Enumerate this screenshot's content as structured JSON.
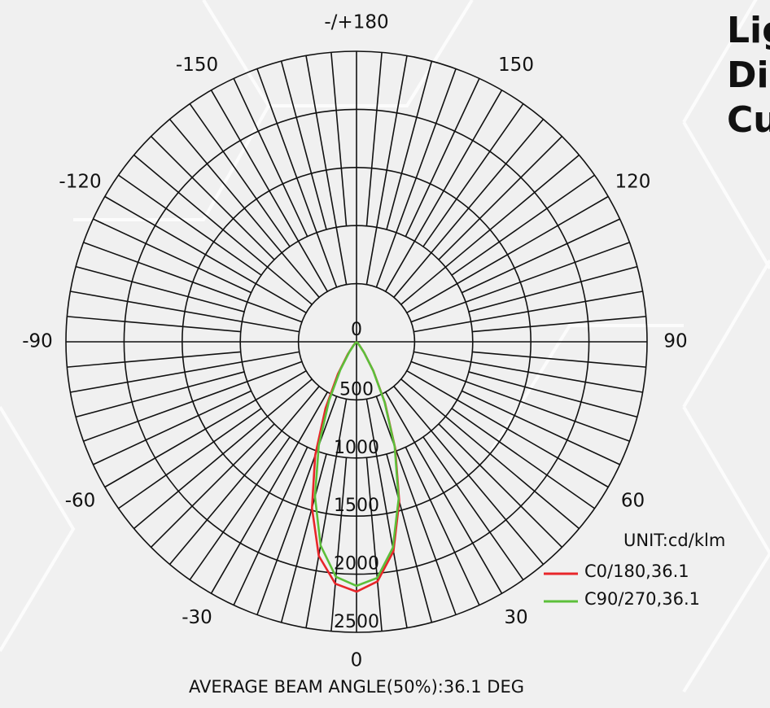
{
  "chart_data": {
    "type": "polar",
    "title_lines": [
      "Light",
      "Distribution",
      "Curve"
    ],
    "unit": "UNIT:cd/klm",
    "annotation": "AVERAGE BEAM ANGLE(50%):36.1 DEG",
    "x": [
      -90,
      -85,
      -80,
      -75,
      -70,
      -65,
      -60,
      -55,
      -50,
      -45,
      -40,
      -35,
      -30,
      -25,
      -20,
      -15,
      -10,
      -5,
      0,
      5,
      10,
      15,
      20,
      25,
      30,
      35,
      40,
      45,
      50,
      55,
      60,
      65,
      70,
      75,
      80,
      85,
      90
    ],
    "series": [
      {
        "name": "C0/180,36.1",
        "color": "#e8262a",
        "values": [
          0,
          0,
          0,
          0,
          0,
          0,
          0,
          0,
          0,
          12,
          45,
          130,
          320,
          630,
          1040,
          1480,
          1870,
          2090,
          2150,
          2070,
          1830,
          1420,
          970,
          580,
          290,
          115,
          38,
          10,
          0,
          0,
          0,
          0,
          0,
          0,
          0,
          0,
          0
        ]
      },
      {
        "name": "C90/270,36.1",
        "color": "#5cbf3a",
        "values": [
          0,
          0,
          0,
          0,
          0,
          0,
          0,
          0,
          0,
          8,
          35,
          110,
          280,
          560,
          950,
          1380,
          1780,
          2030,
          2100,
          2040,
          1800,
          1400,
          960,
          570,
          285,
          112,
          36,
          8,
          0,
          0,
          0,
          0,
          0,
          0,
          0,
          0,
          0
        ]
      }
    ],
    "rlim": [
      0,
      2500
    ],
    "rticks": [
      0,
      500,
      1000,
      1500,
      2000,
      2500
    ],
    "angle_ticks": [
      0,
      30,
      60,
      90,
      120,
      150,
      {
        "value": 180,
        "label": "-/+180"
      },
      -150,
      -120,
      -90,
      -60,
      -30
    ],
    "angle_grid_step": 10,
    "grid": true
  }
}
